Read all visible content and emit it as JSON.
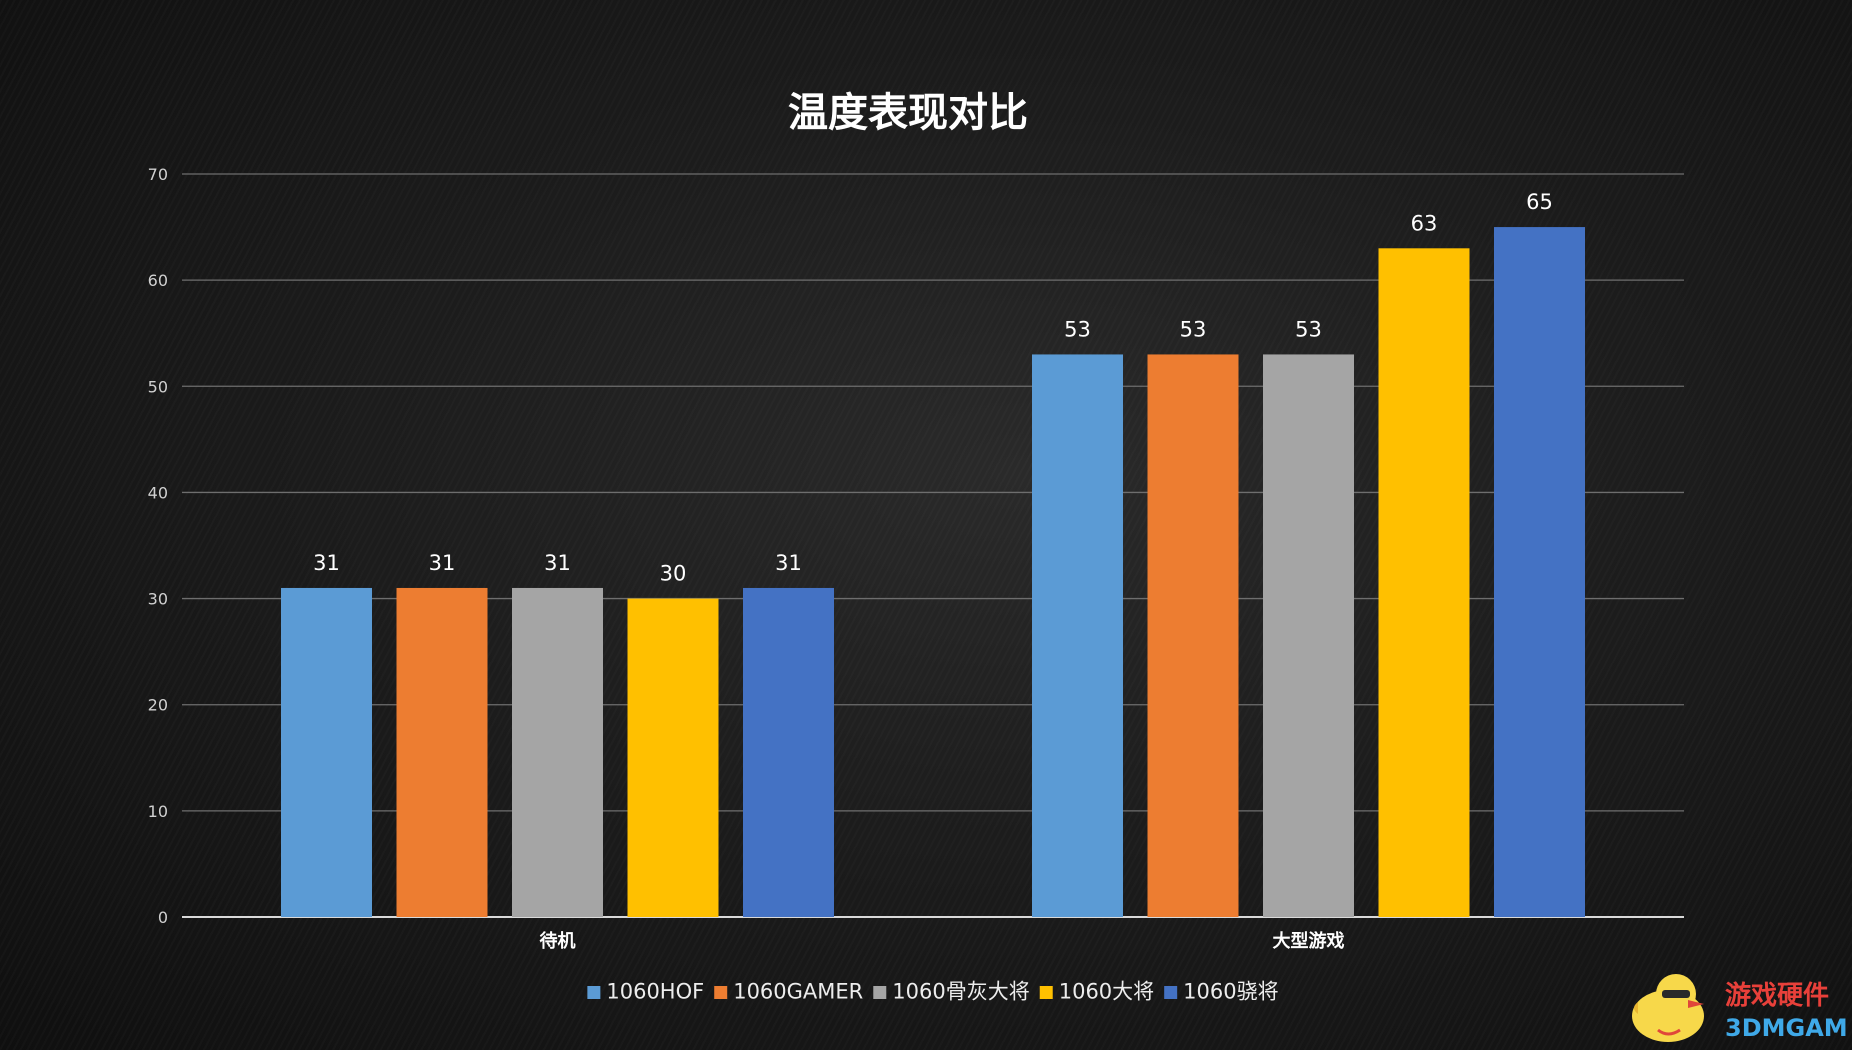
{
  "chart_data": {
    "type": "bar",
    "title": "温度表现对比",
    "categories": [
      "待机",
      "大型游戏"
    ],
    "series": [
      {
        "name": "1060HOF",
        "values": [
          31,
          53
        ],
        "color": "#5B9BD5"
      },
      {
        "name": "1060GAMER",
        "values": [
          31,
          53
        ],
        "color": "#ED7D31"
      },
      {
        "name": "1060骨灰大将",
        "values": [
          31,
          53
        ],
        "color": "#A5A5A5"
      },
      {
        "name": "1060大将",
        "values": [
          30,
          63
        ],
        "color": "#FFC000"
      },
      {
        "name": "1060骁将",
        "values": [
          31,
          65
        ],
        "color": "#4472C4"
      }
    ],
    "ylim": [
      0,
      70
    ],
    "yticks": [
      0,
      10,
      20,
      30,
      40,
      50,
      60,
      70
    ],
    "grid": true,
    "legend": "bottom",
    "data_labels": true
  },
  "watermark": {
    "text_cn": "游戏硬件",
    "text_en": "3DMGAME",
    "icon": "duck-mascot-icon"
  }
}
